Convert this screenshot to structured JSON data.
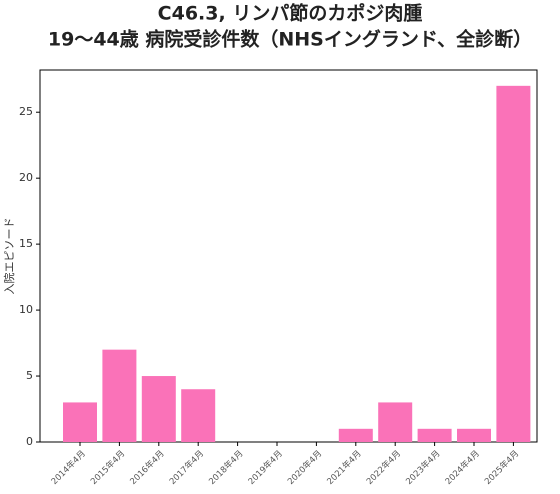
{
  "chart_data": {
    "type": "bar",
    "title_lines": [
      "C46.3, リンパ節のカポジ肉腫",
      "19～44歳 病院受診件数（NHSイングランド、全診断）"
    ],
    "y_label": "入院エピソード",
    "categories": [
      "2014年4月",
      "2015年4月",
      "2016年4月",
      "2017年4月",
      "2018年4月",
      "2019年4月",
      "2020年4月",
      "2021年4月",
      "2022年4月",
      "2023年4月",
      "2024年4月",
      "2025年4月"
    ],
    "values": [
      3,
      7,
      5,
      4,
      0,
      0,
      0,
      1,
      3,
      1,
      1,
      27
    ],
    "color": "#fa72b8",
    "ylim": [
      0,
      28.2
    ],
    "yticks": [
      0,
      5,
      10,
      15,
      20,
      25
    ],
    "grid": false
  }
}
